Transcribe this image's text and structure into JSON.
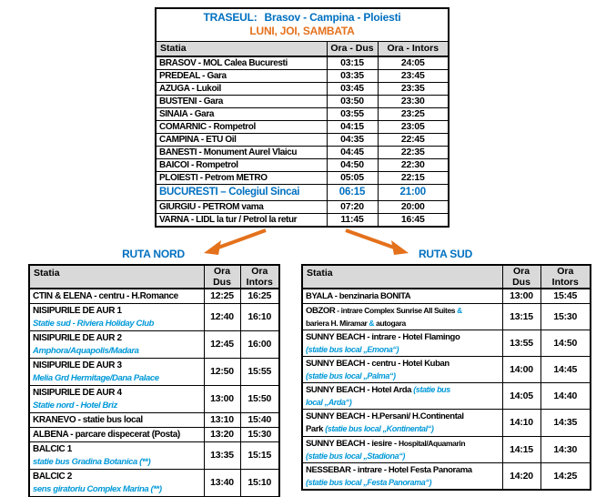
{
  "colors": {
    "blue": "#0070C0",
    "light_blue": "#0099D8",
    "orange": "#E4711C",
    "header_bg": "#D9D9D9"
  },
  "main_table": {
    "title_label": "TRASEUL:",
    "title_route": "Brasov - Campina - Ploiesti",
    "days": "LUNI, JOI, SAMBATA",
    "headers": {
      "station": "Statia",
      "dus": "Ora - Dus",
      "intors": "Ora - Intors"
    },
    "rows": [
      {
        "station": "BRASOV - MOL Calea Bucuresti",
        "dus": "03:15",
        "intors": "24:05"
      },
      {
        "station": "PREDEAL - Gara",
        "dus": "03:35",
        "intors": "23:45"
      },
      {
        "station": "AZUGA - Lukoil",
        "dus": "03:45",
        "intors": "23:35"
      },
      {
        "station": "BUSTENI - Gara",
        "dus": "03:50",
        "intors": "23:30"
      },
      {
        "station": "SINAIA - Gara",
        "dus": "03:55",
        "intors": "23:25"
      },
      {
        "station": "COMARNIC - Rompetrol",
        "dus": "04:15",
        "intors": "23:05"
      },
      {
        "station": "CAMPINA  - ETU Oil",
        "dus": "04:35",
        "intors": "22:45"
      },
      {
        "station": "BANESTI -  Monument Aurel Vlaicu",
        "dus": "04:45",
        "intors": "22:35"
      },
      {
        "station": "BAICOI - Rompetrol",
        "dus": "04:50",
        "intors": "22:30"
      },
      {
        "station": "PLOIESTI - Petrom METRO",
        "dus": "05:05",
        "intors": "22:15"
      },
      {
        "station": "BUCURESTI – Colegiul Sincai",
        "dus": "06:15",
        "intors": "21:00",
        "highlight": true
      },
      {
        "station": "GIURGIU - PETROM vama",
        "dus": "07:20",
        "intors": "20:00"
      },
      {
        "station": "VARNA  - LIDL la tur / Petrol la retur",
        "dus": "11:45",
        "intors": "16:45"
      }
    ]
  },
  "ruta_nord": {
    "title": "RUTA NORD",
    "headers": {
      "station": "Statia",
      "dus1": "Ora",
      "dus2": "Dus",
      "intors1": "Ora",
      "intors2": "Intors"
    },
    "rows": [
      {
        "segs": [
          {
            "t": "CTIN & ELENA - centru - H.Romance",
            "c": "st"
          }
        ],
        "dus": "12:25",
        "intors": "16:25"
      },
      {
        "segs": [
          {
            "t": "NISIPURILE DE AUR 1",
            "c": "st"
          },
          {
            "c": "br"
          },
          {
            "t": "Statie sud - Riviera Holiday Club",
            "c": "sub"
          }
        ],
        "dus": "12:40",
        "intors": "16:10"
      },
      {
        "segs": [
          {
            "t": "NISIPURILE DE AUR 2",
            "c": "st"
          },
          {
            "c": "br"
          },
          {
            "t": "Amphora/Aquapolis/Madara",
            "c": "sub"
          }
        ],
        "dus": "12:45",
        "intors": "16:00"
      },
      {
        "segs": [
          {
            "t": "NISIPURILE DE AUR 3",
            "c": "st"
          },
          {
            "c": "br"
          },
          {
            "t": "Melia Grd Hermitage/Dana Palace",
            "c": "sub"
          }
        ],
        "dus": "12:50",
        "intors": "15:55"
      },
      {
        "segs": [
          {
            "t": "NISIPURILE DE AUR 4",
            "c": "st"
          },
          {
            "c": "br"
          },
          {
            "t": "Statie nord - Hotel Briz",
            "c": "sub"
          }
        ],
        "dus": "13:00",
        "intors": "15:50"
      },
      {
        "segs": [
          {
            "t": "KRANEVO - statie bus local",
            "c": "st"
          }
        ],
        "dus": "13:10",
        "intors": "15:40"
      },
      {
        "segs": [
          {
            "t": "ALBENA  - parcare dispecerat (Posta)",
            "c": "st"
          }
        ],
        "dus": "13:20",
        "intors": "15:30"
      },
      {
        "segs": [
          {
            "t": "BALCIC 1",
            "c": "st"
          },
          {
            "c": "br"
          },
          {
            "t": "statie bus Gradina Botanica (**)",
            "c": "sub"
          }
        ],
        "dus": "13:35",
        "intors": "15:15"
      },
      {
        "segs": [
          {
            "t": "BALCIC 2",
            "c": "st"
          },
          {
            "c": "br"
          },
          {
            "t": "sens giratoriu Complex Marina (**)",
            "c": "sub"
          }
        ],
        "dus": "13:40",
        "intors": "15:10"
      }
    ]
  },
  "ruta_sud": {
    "title": "RUTA SUD",
    "headers": {
      "station": "Statia",
      "dus1": "Ora",
      "dus2": "Dus",
      "intors1": "Ora",
      "intors2": "Intors"
    },
    "rows": [
      {
        "segs": [
          {
            "t": "BYALA - benzinaria BONITA",
            "c": "st"
          }
        ],
        "dus": "13:00",
        "intors": "15:45"
      },
      {
        "segs": [
          {
            "t": "OBZOR",
            "c": "st"
          },
          {
            "t": " - intrare Complex Sunrise All Suites ",
            "c": "d"
          },
          {
            "t": "&",
            "c": "amp"
          },
          {
            "c": "br"
          },
          {
            "t": "bariera H. Miramar ",
            "c": "d"
          },
          {
            "t": "&",
            "c": "amp"
          },
          {
            "t": " autogara",
            "c": "d"
          }
        ],
        "dus": "13:15",
        "intors": "15:30"
      },
      {
        "segs": [
          {
            "t": "SUNNY BEACH - intrare - Hotel Flamingo",
            "c": "st"
          },
          {
            "c": "br"
          },
          {
            "t": "(statie bus local „Emona“)",
            "c": "sub"
          }
        ],
        "dus": "13:55",
        "intors": "14:50"
      },
      {
        "segs": [
          {
            "t": "SUNNY BEACH - centru - Hotel Kuban",
            "c": "st"
          },
          {
            "c": "br"
          },
          {
            "t": "(statie bus local „Palma“)",
            "c": "sub"
          }
        ],
        "dus": "14:00",
        "intors": "14:45"
      },
      {
        "segs": [
          {
            "t": "SUNNY BEACH  - Hotel Arda  ",
            "c": "st"
          },
          {
            "t": "(statie bus",
            "c": "sub"
          },
          {
            "c": "br"
          },
          {
            "t": "local „Arda“)",
            "c": "sub"
          }
        ],
        "dus": "14:05",
        "intors": "14:40"
      },
      {
        "segs": [
          {
            "t": "SUNNY BEACH - H.Persani/ H.Continental",
            "c": "st"
          },
          {
            "c": "br"
          },
          {
            "t": "Park  ",
            "c": "st"
          },
          {
            "t": "(statie bus local „Kontinental“)",
            "c": "sub"
          }
        ],
        "dus": "14:10",
        "intors": "14:35"
      },
      {
        "segs": [
          {
            "t": "SUNNY BEACH - iesire - ",
            "c": "st"
          },
          {
            "t": "Hospital/Aquamarin",
            "c": "d"
          },
          {
            "c": "br"
          },
          {
            "t": "(statie bus local „Stadiona“)",
            "c": "sub"
          }
        ],
        "dus": "14:15",
        "intors": "14:30"
      },
      {
        "segs": [
          {
            "t": "NESSEBAR - intrare - Hotel Festa Panorama",
            "c": "st"
          },
          {
            "c": "br"
          },
          {
            "t": "(statie bus local „Festa Panorama“)",
            "c": "sub"
          }
        ],
        "dus": "14:20",
        "intors": "14:25"
      }
    ]
  }
}
